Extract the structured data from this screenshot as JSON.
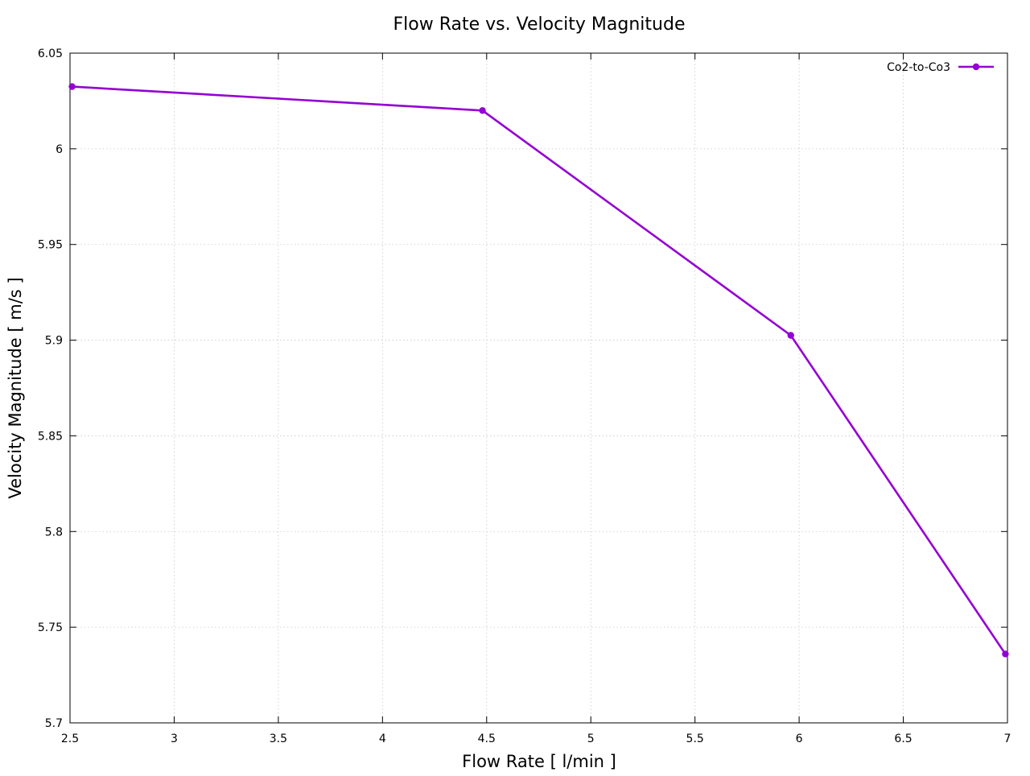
{
  "chart_data": {
    "type": "line",
    "title": "Flow Rate vs. Velocity Magnitude",
    "xlabel": "Flow Rate [ l/min ]",
    "ylabel": "Velocity Magnitude [ m/s ]",
    "xlim": [
      2.5,
      7
    ],
    "ylim": [
      5.7,
      6.05
    ],
    "x_ticks": [
      2.5,
      3,
      3.5,
      4,
      4.5,
      5,
      5.5,
      6,
      6.5,
      7
    ],
    "x_tick_labels": [
      "2.5",
      "3",
      "3.5",
      "4",
      "4.5",
      "5",
      "5.5",
      "6",
      "6.5",
      "7"
    ],
    "y_ticks": [
      5.7,
      5.75,
      5.8,
      5.85,
      5.9,
      5.95,
      6,
      6.05
    ],
    "y_tick_labels": [
      "5.7",
      "5.75",
      "5.8",
      "5.85",
      "5.9",
      "5.95",
      "6",
      "6.05"
    ],
    "grid": true,
    "legend_position": "top-right",
    "series": [
      {
        "name": "Co2-to-Co3",
        "color": "#9400d3",
        "marker": "circle",
        "x": [
          2.51,
          4.48,
          5.96,
          6.99
        ],
        "y": [
          6.0325,
          6.02,
          5.9025,
          5.736
        ]
      }
    ]
  }
}
